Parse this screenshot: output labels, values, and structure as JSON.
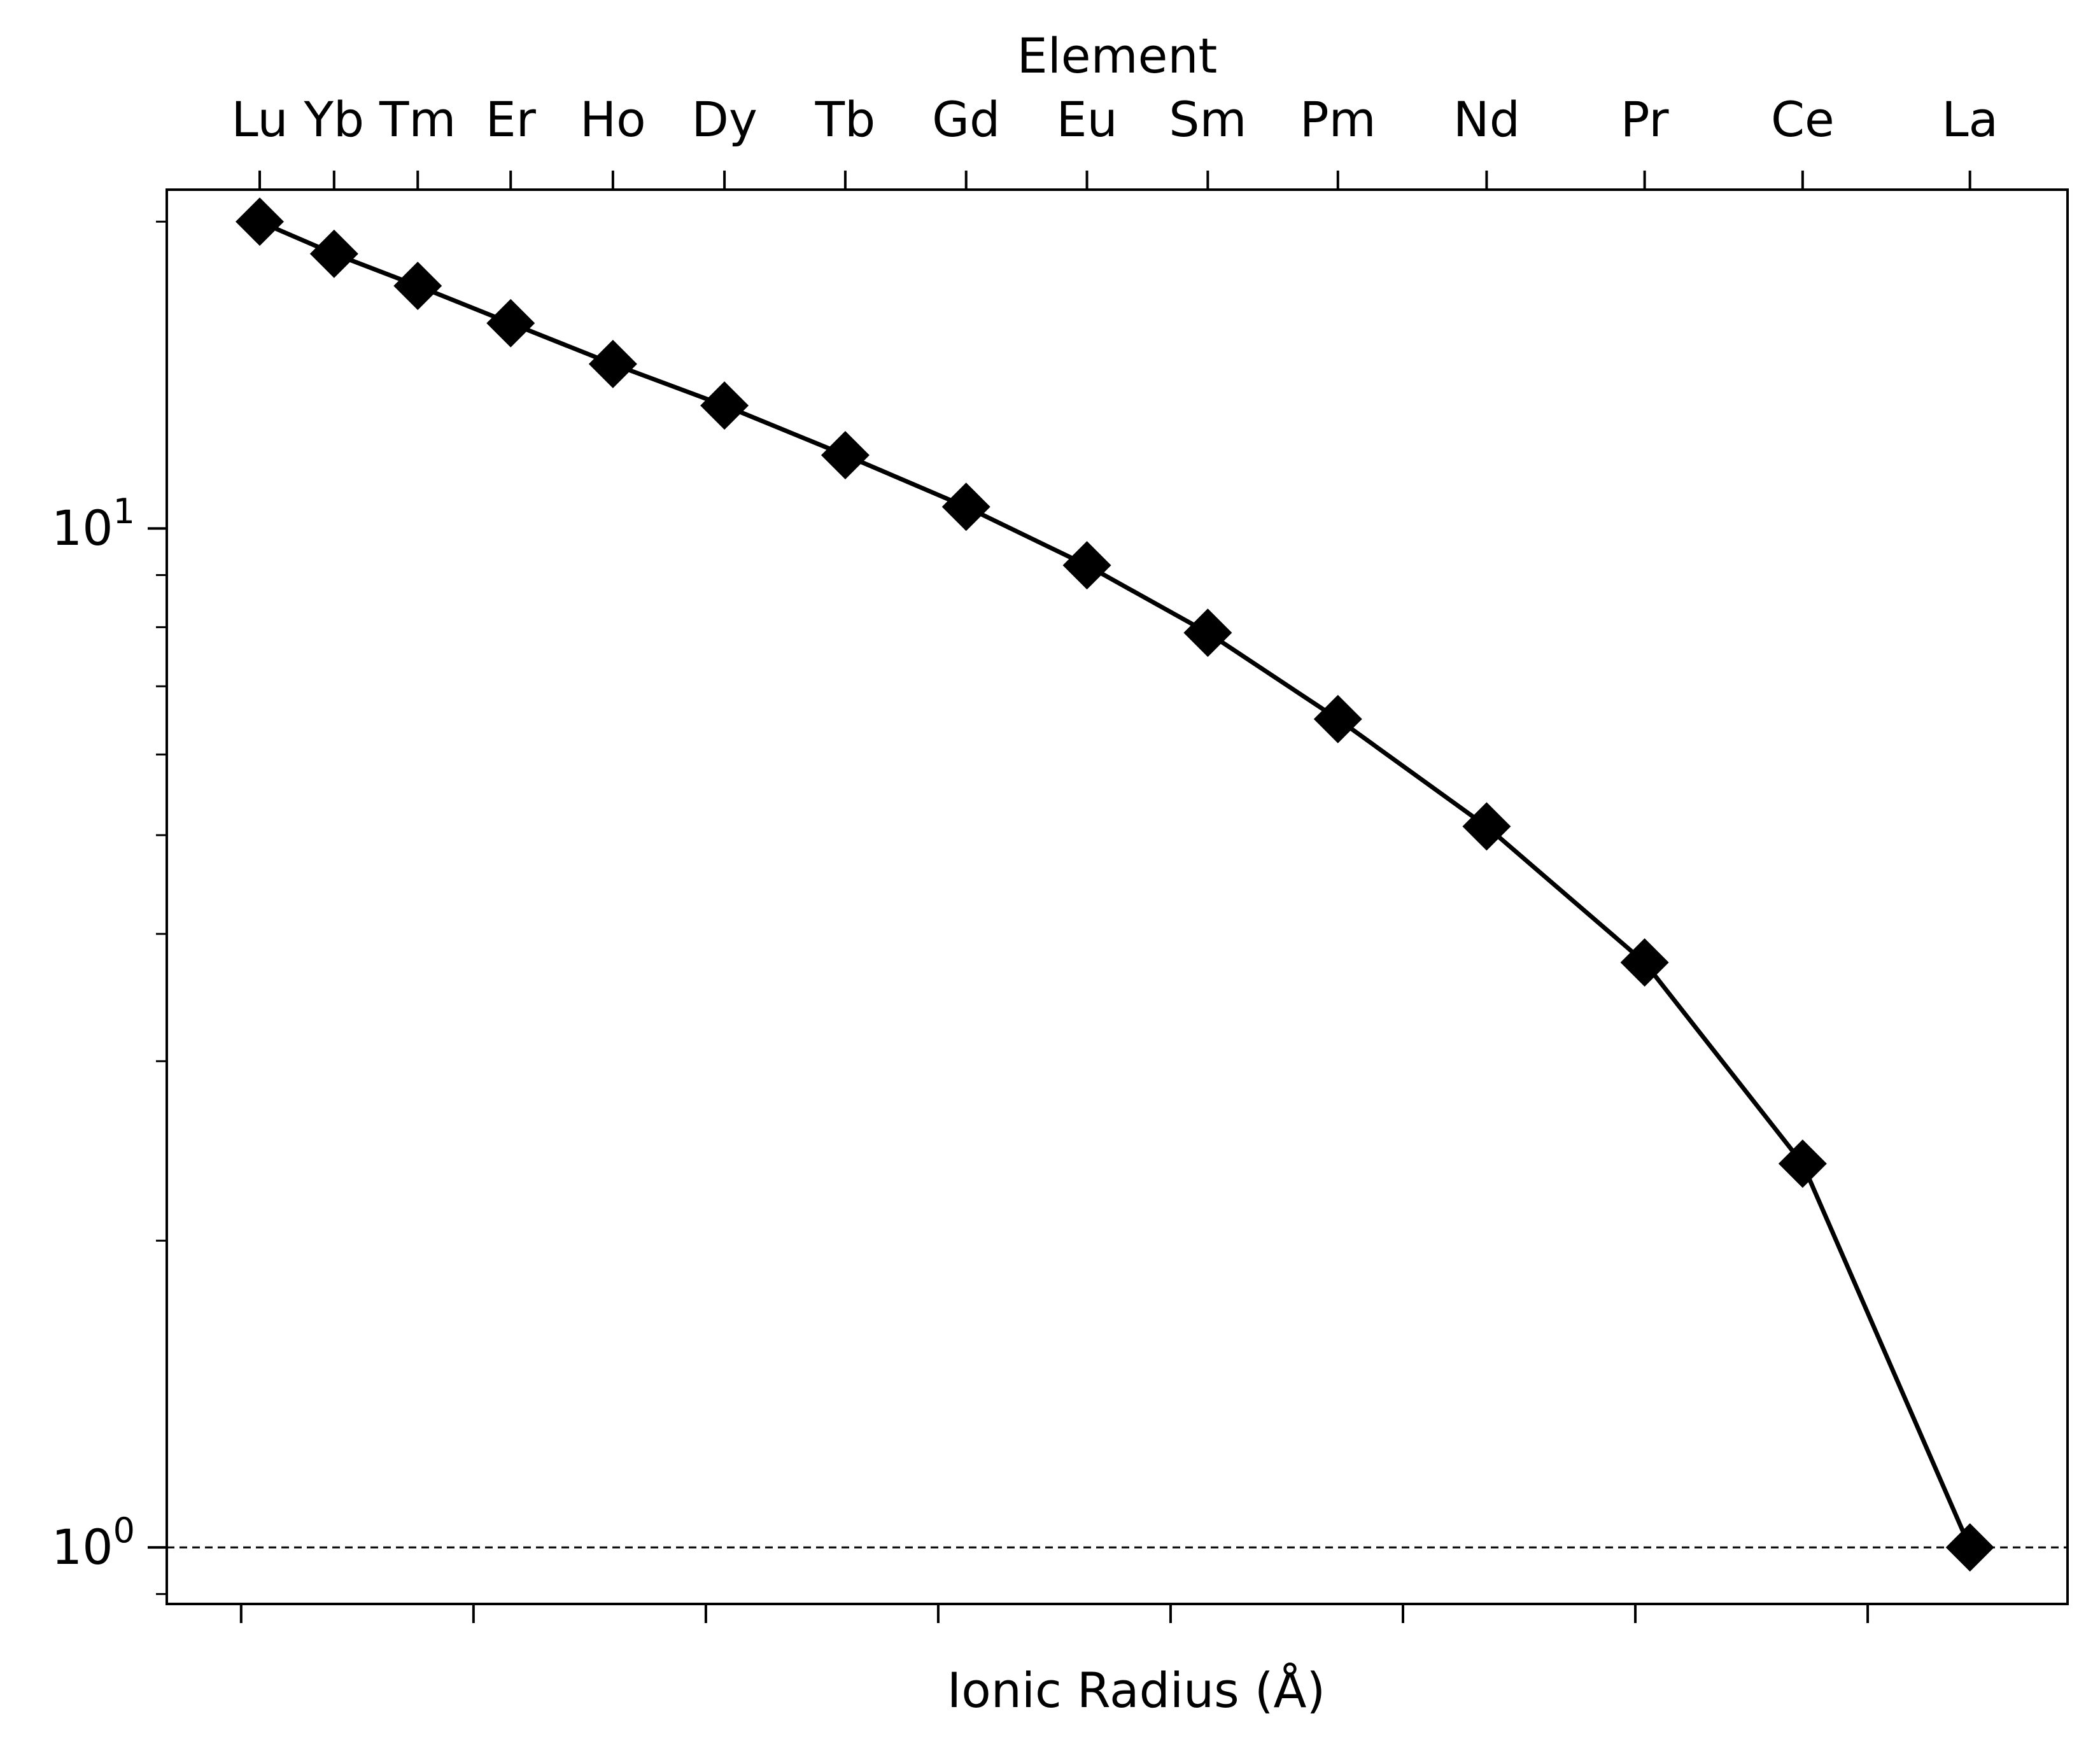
{
  "chart_data": {
    "type": "line",
    "top_axis_title": "Element",
    "xlabel": "Ionic Radius (Å)",
    "ylabel": "",
    "yscale": "log",
    "ylim": [
      0.88,
      21.5
    ],
    "xlim": [
      0.846,
      1.0505
    ],
    "grid": false,
    "legend": "none",
    "marker": "diamond",
    "line_color": "#000000",
    "reference_line": {
      "y": 1.0,
      "style": "dashed",
      "color": "#000000"
    },
    "bottom_ticks": [
      0.854,
      0.879,
      0.904,
      0.929,
      0.954,
      0.979,
      1.004,
      1.029
    ],
    "bottom_tick_labels_shown": false,
    "y_major_ticks": [
      {
        "value": 1,
        "label_base": "10",
        "label_exp": "0"
      },
      {
        "value": 10,
        "label_base": "10",
        "label_exp": "1"
      }
    ],
    "y_minor_ticks": [
      0.9,
      2,
      3,
      4,
      5,
      6,
      7,
      8,
      9,
      20
    ],
    "series": [
      {
        "elements": [
          "Lu",
          "Yb",
          "Tm",
          "Er",
          "Ho",
          "Dy",
          "Tb",
          "Gd",
          "Eu",
          "Sm",
          "Pm",
          "Nd",
          "Pr",
          "Ce",
          "La"
        ],
        "x": [
          0.856,
          0.864,
          0.873,
          0.883,
          0.894,
          0.906,
          0.919,
          0.932,
          0.945,
          0.958,
          0.972,
          0.988,
          1.005,
          1.022,
          1.04
        ],
        "y": [
          20.0,
          18.6,
          17.3,
          15.9,
          14.5,
          13.2,
          11.8,
          10.5,
          9.2,
          7.9,
          6.5,
          5.1,
          3.75,
          2.38,
          1.0
        ]
      }
    ]
  }
}
